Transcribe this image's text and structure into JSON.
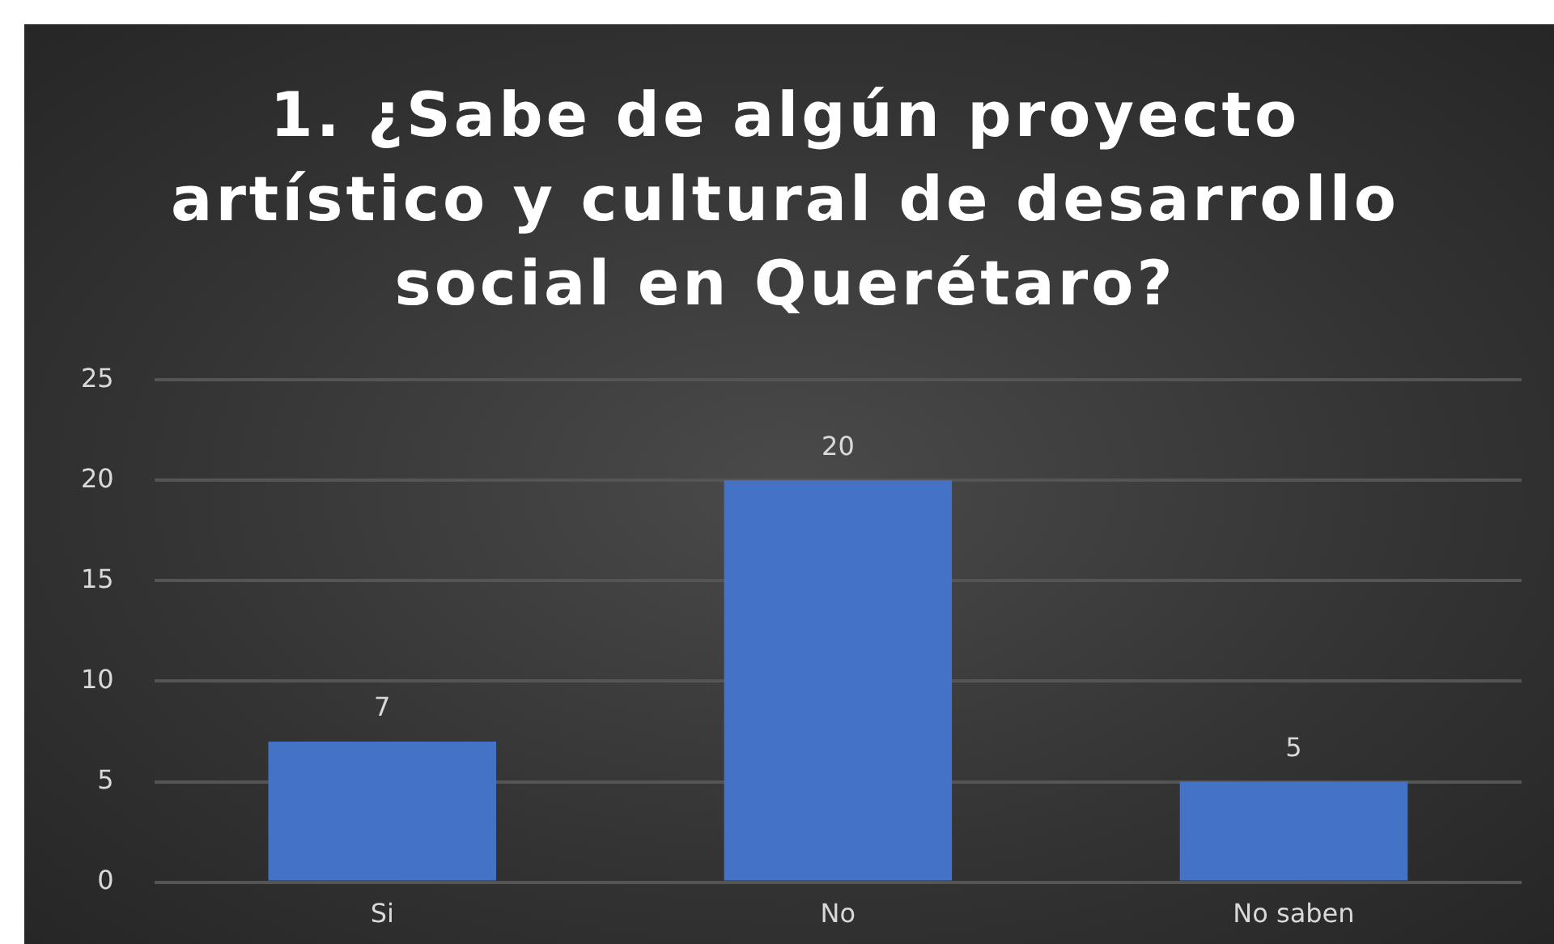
{
  "chart_data": {
    "type": "bar",
    "title": "1. ¿Sabe de algún proyecto artístico y cultural de desarrollo social en Querétaro?",
    "categories": [
      "Si",
      "No",
      "No saben"
    ],
    "values": [
      7,
      20,
      5
    ],
    "color": "#4472c4",
    "ylim": [
      0,
      25
    ],
    "yticks": [
      0,
      5,
      10,
      15,
      20,
      25
    ],
    "grid": "y",
    "legend": false,
    "data_labels": true
  }
}
